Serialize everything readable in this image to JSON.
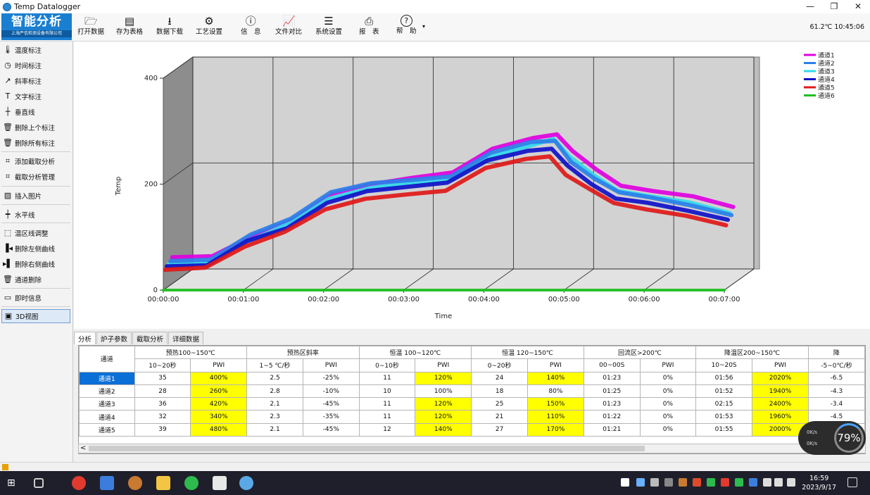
{
  "window": {
    "title": "Temp Datalogger",
    "buttons": [
      "—",
      "❐",
      "✕"
    ]
  },
  "logo": {
    "title": "智能分析",
    "subtitle": "上海严信检测设备有限公司"
  },
  "toolbar": {
    "items": [
      {
        "label": "打开数据",
        "icon": "folder-open-icon"
      },
      {
        "label": "存为表格",
        "icon": "csv-file-icon"
      },
      {
        "label": "数据下载",
        "icon": "download-icon"
      },
      {
        "label": "工艺设置",
        "icon": "gear-icon"
      },
      {
        "label": "信　息",
        "icon": "info-icon"
      },
      {
        "label": "文件对比",
        "icon": "chart-compare-icon"
      },
      {
        "label": "系统设置",
        "icon": "settings-list-icon"
      },
      {
        "label": "报　表",
        "icon": "printer-icon"
      },
      {
        "label": "帮　助",
        "icon": "help-icon"
      }
    ],
    "status": "61.2℃  10:45:06"
  },
  "sidebar": {
    "items": [
      {
        "label": "温度标注",
        "icon": "thermometer-icon"
      },
      {
        "label": "时间标注",
        "icon": "clock-icon"
      },
      {
        "label": "斜率标注",
        "icon": "slope-arrow-icon"
      },
      {
        "label": "文字标注",
        "icon": "text-icon"
      },
      {
        "label": "垂直线",
        "icon": "vertical-line-icon"
      },
      {
        "label": "删除上个标注",
        "icon": "trash-icon"
      },
      {
        "label": "删除所有标注",
        "icon": "trash-icon"
      },
      {
        "label": "添加截取分析",
        "icon": "crop-icon"
      },
      {
        "label": "截取分析管理",
        "icon": "crop-icon"
      },
      {
        "label": "插入图片",
        "icon": "image-icon"
      },
      {
        "label": "水平线",
        "icon": "horizontal-line-icon"
      },
      {
        "label": "温区线调整",
        "icon": "zone-adjust-icon"
      },
      {
        "label": "删除左侧曲线",
        "icon": "delete-left-icon"
      },
      {
        "label": "删除右侧曲线",
        "icon": "delete-right-icon"
      },
      {
        "label": "通道删除",
        "icon": "trash-icon"
      },
      {
        "label": "即时信息",
        "icon": "monitor-icon"
      },
      {
        "label": "3D视图",
        "icon": "3d-view-icon"
      }
    ]
  },
  "chart_data": {
    "type": "line",
    "ylabel": "Temp",
    "xlabel": "Time",
    "ylim": [
      0,
      400
    ],
    "yticks": [
      "0",
      "200",
      "400"
    ],
    "xticks": [
      "00:00:00",
      "00:01:00",
      "00:02:00",
      "00:03:00",
      "00:04:00",
      "00:05:00",
      "00:06:00",
      "00:07:00"
    ],
    "xlim_minutes": [
      0,
      7
    ],
    "grid": true,
    "legend_position": "top-right",
    "series": [
      {
        "name": "通道1",
        "color": "#e000e0",
        "points": [
          [
            0,
            50
          ],
          [
            0.5,
            52
          ],
          [
            1,
            90
          ],
          [
            1.5,
            120
          ],
          [
            2,
            170
          ],
          [
            2.5,
            188
          ],
          [
            3,
            200
          ],
          [
            3.5,
            210
          ],
          [
            4,
            255
          ],
          [
            4.5,
            275
          ],
          [
            4.8,
            282
          ],
          [
            5,
            250
          ],
          [
            5.3,
            215
          ],
          [
            5.6,
            185
          ],
          [
            6,
            175
          ],
          [
            6.5,
            165
          ],
          [
            7,
            145
          ]
        ]
      },
      {
        "name": "通道2",
        "color": "#2a7fe8",
        "points": [
          [
            0,
            45
          ],
          [
            0.5,
            48
          ],
          [
            1,
            95
          ],
          [
            1.5,
            125
          ],
          [
            2,
            175
          ],
          [
            2.5,
            192
          ],
          [
            3,
            198
          ],
          [
            3.5,
            205
          ],
          [
            4,
            250
          ],
          [
            4.5,
            270
          ],
          [
            4.8,
            272
          ],
          [
            5,
            232
          ],
          [
            5.3,
            200
          ],
          [
            5.6,
            175
          ],
          [
            6,
            165
          ],
          [
            6.5,
            150
          ],
          [
            7,
            132
          ]
        ]
      },
      {
        "name": "通道3",
        "color": "#33d8e8",
        "points": [
          [
            0,
            42
          ],
          [
            0.5,
            45
          ],
          [
            1,
            85
          ],
          [
            1.5,
            118
          ],
          [
            2,
            165
          ],
          [
            2.5,
            185
          ],
          [
            3,
            195
          ],
          [
            3.5,
            200
          ],
          [
            4,
            245
          ],
          [
            4.5,
            265
          ],
          [
            4.8,
            278
          ],
          [
            5,
            245
          ],
          [
            5.3,
            210
          ],
          [
            5.6,
            180
          ],
          [
            6,
            170
          ],
          [
            6.5,
            158
          ],
          [
            7,
            138
          ]
        ]
      },
      {
        "name": "通道4",
        "color": "#1010c8",
        "points": [
          [
            0,
            40
          ],
          [
            0.5,
            42
          ],
          [
            1,
            88
          ],
          [
            1.5,
            112
          ],
          [
            2,
            160
          ],
          [
            2.5,
            182
          ],
          [
            3,
            190
          ],
          [
            3.5,
            198
          ],
          [
            4,
            240
          ],
          [
            4.5,
            258
          ],
          [
            4.8,
            262
          ],
          [
            5,
            230
          ],
          [
            5.3,
            195
          ],
          [
            5.6,
            168
          ],
          [
            6,
            160
          ],
          [
            6.5,
            145
          ],
          [
            7,
            128
          ]
        ]
      },
      {
        "name": "通道5",
        "color": "#e01818",
        "points": [
          [
            0,
            36
          ],
          [
            0.5,
            40
          ],
          [
            1,
            80
          ],
          [
            1.5,
            108
          ],
          [
            2,
            150
          ],
          [
            2.5,
            170
          ],
          [
            3,
            178
          ],
          [
            3.5,
            185
          ],
          [
            4,
            228
          ],
          [
            4.5,
            245
          ],
          [
            4.8,
            250
          ],
          [
            5,
            215
          ],
          [
            5.3,
            188
          ],
          [
            5.6,
            162
          ],
          [
            6,
            150
          ],
          [
            6.5,
            138
          ],
          [
            7,
            120
          ]
        ]
      },
      {
        "name": "通道6",
        "color": "#20c020",
        "points": [
          [
            0,
            0
          ],
          [
            7,
            0
          ]
        ]
      }
    ]
  },
  "tabs": [
    {
      "label": "分析",
      "active": true
    },
    {
      "label": "炉子参数",
      "active": false
    },
    {
      "label": "截取分析",
      "active": false
    },
    {
      "label": "详细数据",
      "active": false
    }
  ],
  "table": {
    "groups": [
      {
        "label": "通道"
      },
      {
        "label": "预热100~150℃"
      },
      {
        "label": "预热区斜率"
      },
      {
        "label": "恒温 100~120℃"
      },
      {
        "label": "恒温 120~150℃"
      },
      {
        "label": "回流区>200℃"
      },
      {
        "label": "降温区200~150℃"
      },
      {
        "label": "降"
      }
    ],
    "subheaders": [
      "10~20秒",
      "PWI",
      "1~5 ℃/秒",
      "PWI",
      "0~10秒",
      "PWI",
      "0~20秒",
      "PWI",
      "00~00S",
      "PWI",
      "10~20S",
      "PWI",
      "-5~0℃/秒"
    ],
    "rows": [
      {
        "channel": "通道1",
        "cells": [
          "35",
          "400%",
          "2.5",
          "-25%",
          "11",
          "120%",
          "24",
          "140%",
          "01:23",
          "0%",
          "01:56",
          "2020%",
          "-6.5"
        ],
        "yellow": [
          1,
          5,
          7,
          11
        ]
      },
      {
        "channel": "通道2",
        "cells": [
          "28",
          "260%",
          "2.8",
          "-10%",
          "10",
          "100%",
          "18",
          "80%",
          "01:25",
          "0%",
          "01:52",
          "1940%",
          "-4.3"
        ],
        "yellow": [
          1,
          11
        ]
      },
      {
        "channel": "通道3",
        "cells": [
          "36",
          "420%",
          "2.1",
          "-45%",
          "11",
          "120%",
          "25",
          "150%",
          "01:23",
          "0%",
          "02:15",
          "2400%",
          "-3.4"
        ],
        "yellow": [
          1,
          5,
          7,
          11
        ]
      },
      {
        "channel": "通道4",
        "cells": [
          "32",
          "340%",
          "2.3",
          "-35%",
          "11",
          "120%",
          "21",
          "110%",
          "01:22",
          "0%",
          "01:53",
          "1960%",
          "-4.5"
        ],
        "yellow": [
          1,
          5,
          7,
          11
        ]
      },
      {
        "channel": "通道5",
        "cells": [
          "39",
          "480%",
          "2.1",
          "-45%",
          "12",
          "140%",
          "27",
          "170%",
          "01:21",
          "0%",
          "01:55",
          "2000%",
          ""
        ],
        "yellow": [
          1,
          5,
          7,
          11
        ]
      }
    ]
  },
  "widget": {
    "percent": "79%",
    "up": "0K/s",
    "down": "0K/s"
  },
  "taskbar": {
    "time": "16:59",
    "date": "2023/9/17"
  },
  "colors": {
    "accent": "#1a7fd1",
    "highlight": "#ffff00",
    "selected": "#0a6fd6"
  }
}
